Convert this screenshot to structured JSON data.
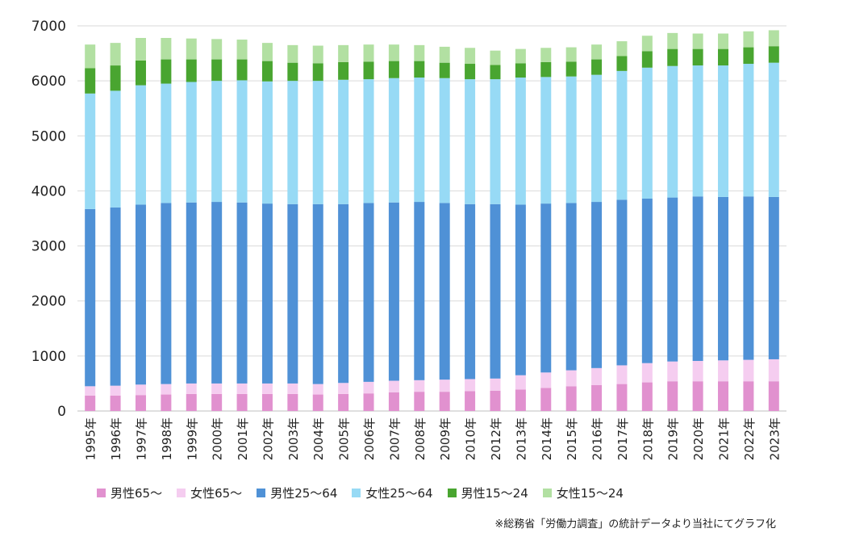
{
  "chart_data": {
    "type": "bar",
    "stacked": true,
    "title": "",
    "xlabel": "",
    "ylabel": "",
    "ylim": [
      0,
      7000
    ],
    "yticks": [
      0,
      1000,
      2000,
      3000,
      4000,
      5000,
      6000,
      7000
    ],
    "ytick_labels": [
      "0",
      "1000",
      "2000",
      "3000",
      "4000",
      "5000",
      "6000",
      "7000"
    ],
    "grid": "horizontal",
    "legend_position": "bottom",
    "categories": [
      "1995年",
      "1996年",
      "1997年",
      "1998年",
      "1999年",
      "2000年",
      "2001年",
      "2002年",
      "2003年",
      "2004年",
      "2005年",
      "2006年",
      "2007年",
      "2008年",
      "2009年",
      "2010年",
      "2012年",
      "2013年",
      "2014年",
      "2015年",
      "2016年",
      "2017年",
      "2018年",
      "2019年",
      "2020年",
      "2021年",
      "2022年",
      "2023年"
    ],
    "series": [
      {
        "name": "男性65～",
        "color": "#e191cf",
        "values": [
          280,
          280,
          290,
          300,
          310,
          310,
          310,
          310,
          310,
          300,
          310,
          320,
          340,
          350,
          350,
          360,
          370,
          390,
          420,
          450,
          470,
          490,
          520,
          540,
          540,
          540,
          540,
          540
        ]
      },
      {
        "name": "女性65～",
        "color": "#f5cdf0",
        "values": [
          170,
          180,
          190,
          190,
          190,
          190,
          190,
          190,
          190,
          190,
          200,
          210,
          210,
          210,
          220,
          220,
          220,
          260,
          280,
          290,
          310,
          340,
          350,
          360,
          370,
          380,
          390,
          400
        ]
      },
      {
        "name": "男性25～64",
        "color": "#4f91d6",
        "values": [
          3220,
          3240,
          3270,
          3290,
          3290,
          3300,
          3290,
          3270,
          3260,
          3270,
          3250,
          3250,
          3240,
          3240,
          3210,
          3180,
          3170,
          3100,
          3070,
          3040,
          3020,
          3010,
          2990,
          2980,
          2990,
          2970,
          2970,
          2950
        ]
      },
      {
        "name": "女性25～64",
        "color": "#97daf5",
        "values": [
          2100,
          2120,
          2170,
          2170,
          2190,
          2200,
          2220,
          2220,
          2240,
          2240,
          2260,
          2250,
          2260,
          2260,
          2270,
          2270,
          2270,
          2310,
          2300,
          2300,
          2310,
          2340,
          2380,
          2390,
          2380,
          2390,
          2410,
          2440
        ]
      },
      {
        "name": "男性15～24",
        "color": "#49a530",
        "values": [
          460,
          460,
          450,
          440,
          410,
          390,
          380,
          370,
          330,
          320,
          320,
          320,
          310,
          300,
          280,
          280,
          260,
          260,
          270,
          270,
          280,
          270,
          300,
          310,
          300,
          300,
          300,
          300
        ]
      },
      {
        "name": "女性15～24",
        "color": "#b2e0a2",
        "values": [
          430,
          410,
          410,
          390,
          380,
          370,
          360,
          330,
          320,
          320,
          310,
          310,
          300,
          290,
          290,
          290,
          260,
          260,
          260,
          260,
          270,
          270,
          280,
          290,
          280,
          280,
          290,
          290
        ]
      }
    ]
  },
  "source_note": "※総務省「労働力調査」の統計データより当社にてグラフ化"
}
